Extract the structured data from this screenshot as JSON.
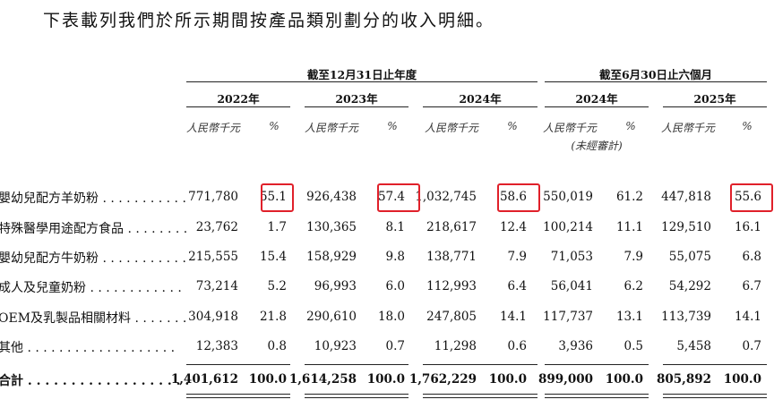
{
  "intro": "下表載列我們於所示期間按產品類別劃分的收入明細。",
  "groups": {
    "annual": "截至12月31日止年度",
    "interim": "截至6月30日止六個月"
  },
  "years": [
    "2022年",
    "2023年",
    "2024年",
    "2024年",
    "2025年"
  ],
  "units": {
    "rmb": "人民幣千元",
    "pct": "%",
    "unaudited": "(未經審計)"
  },
  "rows": [
    {
      "label": "嬰幼兒配方羊奶粉 . . . . . . . . . . .",
      "values": [
        "771,780",
        "55.1",
        "926,438",
        "57.4",
        "1,032,745",
        "58.6",
        "550,019",
        "61.2",
        "447,818",
        "55.6"
      ]
    },
    {
      "label": "特殊醫學用途配方食品 . . . . . . . .",
      "values": [
        "23,762",
        "1.7",
        "130,365",
        "8.1",
        "218,617",
        "12.4",
        "100,214",
        "11.1",
        "129,510",
        "16.1"
      ]
    },
    {
      "label": "嬰幼兒配方牛奶粉 . . . . . . . . . . .",
      "values": [
        "215,555",
        "15.4",
        "158,929",
        "9.8",
        "138,771",
        "7.9",
        "71,053",
        "7.9",
        "55,075",
        "6.8"
      ]
    },
    {
      "label": "成人及兒童奶粉 . . . . . . . . . . . .",
      "values": [
        "73,214",
        "5.2",
        "96,993",
        "6.0",
        "112,993",
        "6.4",
        "56,041",
        "6.2",
        "54,292",
        "6.7"
      ]
    },
    {
      "label": "OEM及乳製品相關材料 . . . . . . .",
      "values": [
        "304,918",
        "21.8",
        "290,610",
        "18.0",
        "247,805",
        "14.1",
        "117,737",
        "13.1",
        "113,739",
        "14.1"
      ]
    },
    {
      "label": "其他 . . . . . . . . . . . . . . . . . . .",
      "values": [
        "12,383",
        "0.8",
        "10,923",
        "0.7",
        "11,298",
        "0.6",
        "3,936",
        "0.5",
        "5,458",
        "0.7"
      ]
    },
    {
      "label": "合計 . . . . . . . . . . . . . . . . . . .",
      "values": [
        "1,401,612",
        "100.0",
        "1,614,258",
        "100.0",
        "1,762,229",
        "100.0",
        "899,000",
        "100.0",
        "805,892",
        "100.0"
      ]
    }
  ],
  "highlight_color": "#e0202a"
}
